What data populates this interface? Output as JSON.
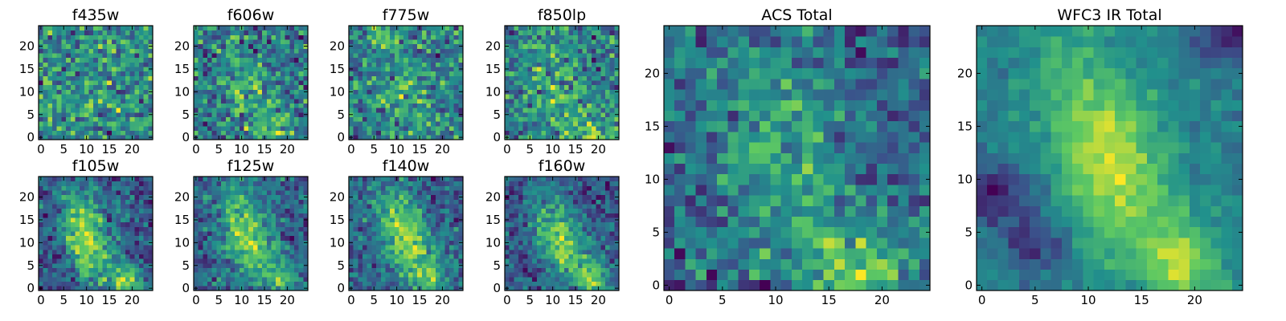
{
  "colormap": [
    "#440154",
    "#3b528b",
    "#21918c",
    "#5ec962",
    "#fde725"
  ],
  "chart_data": [
    {
      "type": "heatmap",
      "title": "f435w",
      "xticks": [
        "0",
        "5",
        "10",
        "15",
        "20"
      ],
      "yticks": [
        "0",
        "5",
        "10",
        "15",
        "20"
      ],
      "grid_size": 25,
      "xlim": [
        -0.5,
        24.5
      ],
      "ylim": [
        -0.5,
        24.5
      ],
      "pattern": {
        "seed": 11,
        "noise": 0.55,
        "blob": 0.05,
        "cx": 12,
        "cy": 12,
        "sx": 6,
        "sy": 6,
        "angle": 0,
        "extras": []
      }
    },
    {
      "type": "heatmap",
      "title": "f606w",
      "xticks": [
        "0",
        "5",
        "10",
        "15",
        "20"
      ],
      "yticks": [
        "0",
        "5",
        "10",
        "15",
        "20"
      ],
      "grid_size": 25,
      "xlim": [
        -0.5,
        24.5
      ],
      "ylim": [
        -0.5,
        24.5
      ],
      "pattern": {
        "seed": 23,
        "noise": 0.45,
        "blob": 0.22,
        "cx": 11,
        "cy": 11,
        "sx": 3.5,
        "sy": 7,
        "angle": -0.35,
        "extras": [
          [
            18,
            2,
            3,
            0.3
          ]
        ]
      }
    },
    {
      "type": "heatmap",
      "title": "f775w",
      "xticks": [
        "0",
        "5",
        "10",
        "15",
        "20"
      ],
      "yticks": [
        "0",
        "5",
        "10",
        "15",
        "20"
      ],
      "grid_size": 25,
      "xlim": [
        -0.5,
        24.5
      ],
      "ylim": [
        -0.5,
        24.5
      ],
      "pattern": {
        "seed": 37,
        "noise": 0.5,
        "blob": 0.18,
        "cx": 12,
        "cy": 10,
        "sx": 3.5,
        "sy": 7,
        "angle": -0.3,
        "extras": [
          [
            6,
            22,
            2,
            0.3
          ]
        ]
      }
    },
    {
      "type": "heatmap",
      "title": "f850lp",
      "xticks": [
        "0",
        "5",
        "10",
        "15",
        "20"
      ],
      "yticks": [
        "0",
        "5",
        "10",
        "15",
        "20"
      ],
      "grid_size": 25,
      "xlim": [
        -0.5,
        24.5
      ],
      "ylim": [
        -0.5,
        24.5
      ],
      "pattern": {
        "seed": 41,
        "noise": 0.48,
        "blob": 0.2,
        "cx": 11,
        "cy": 9,
        "sx": 3.5,
        "sy": 7,
        "angle": -0.3,
        "extras": [
          [
            19,
            1,
            3,
            0.35
          ]
        ]
      }
    },
    {
      "type": "heatmap",
      "title": "f105w",
      "xticks": [
        "0",
        "5",
        "10",
        "15",
        "20"
      ],
      "yticks": [
        "0",
        "5",
        "10",
        "15",
        "20"
      ],
      "grid_size": 25,
      "xlim": [
        -0.5,
        24.5
      ],
      "ylim": [
        -0.5,
        24.5
      ],
      "pattern": {
        "seed": 53,
        "noise": 0.28,
        "blob": 0.5,
        "cx": 10,
        "cy": 11,
        "sx": 3.5,
        "sy": 7.5,
        "angle": -0.3,
        "extras": [
          [
            19,
            1,
            2.5,
            0.4
          ]
        ]
      }
    },
    {
      "type": "heatmap",
      "title": "f125w",
      "xticks": [
        "0",
        "5",
        "10",
        "15",
        "20"
      ],
      "yticks": [
        "0",
        "5",
        "10",
        "15",
        "20"
      ],
      "grid_size": 25,
      "xlim": [
        -0.5,
        24.5
      ],
      "ylim": [
        -0.5,
        24.5
      ],
      "pattern": {
        "seed": 67,
        "noise": 0.3,
        "blob": 0.5,
        "cx": 11,
        "cy": 12,
        "sx": 3.5,
        "sy": 7.5,
        "angle": -0.3,
        "extras": [
          [
            19,
            2,
            2.5,
            0.35
          ]
        ]
      }
    },
    {
      "type": "heatmap",
      "title": "f140w",
      "xticks": [
        "0",
        "5",
        "10",
        "15",
        "20"
      ],
      "yticks": [
        "0",
        "5",
        "10",
        "15",
        "20"
      ],
      "grid_size": 25,
      "xlim": [
        -0.5,
        24.5
      ],
      "ylim": [
        -0.5,
        24.5
      ],
      "pattern": {
        "seed": 79,
        "noise": 0.3,
        "blob": 0.5,
        "cx": 12,
        "cy": 11,
        "sx": 3.5,
        "sy": 7.5,
        "angle": -0.35,
        "extras": [
          [
            18,
            2,
            2.5,
            0.3
          ]
        ]
      }
    },
    {
      "type": "heatmap",
      "title": "f160w",
      "xticks": [
        "0",
        "5",
        "10",
        "15",
        "20"
      ],
      "yticks": [
        "0",
        "5",
        "10",
        "15",
        "20"
      ],
      "grid_size": 25,
      "xlim": [
        -0.5,
        24.5
      ],
      "ylim": [
        -0.5,
        24.5
      ],
      "pattern": {
        "seed": 83,
        "noise": 0.3,
        "blob": 0.5,
        "cx": 12,
        "cy": 10,
        "sx": 3.5,
        "sy": 7.5,
        "angle": -0.4,
        "extras": [
          [
            19,
            2,
            2.5,
            0.4
          ]
        ]
      }
    },
    {
      "type": "heatmap",
      "title": "ACS Total",
      "xticks": [
        "0",
        "5",
        "10",
        "15",
        "20"
      ],
      "yticks": [
        "0",
        "5",
        "10",
        "15",
        "20"
      ],
      "grid_size": 25,
      "xlim": [
        -0.5,
        24.5
      ],
      "ylim": [
        -0.5,
        24.5
      ],
      "pattern": {
        "seed": 97,
        "noise": 0.42,
        "blob": 0.3,
        "cx": 11,
        "cy": 11,
        "sx": 3.5,
        "sy": 7.5,
        "angle": -0.3,
        "extras": [
          [
            18,
            1,
            3,
            0.45
          ]
        ]
      }
    },
    {
      "type": "heatmap",
      "title": "WFC3 IR Total",
      "xticks": [
        "0",
        "5",
        "10",
        "15",
        "20"
      ],
      "yticks": [
        "0",
        "5",
        "10",
        "15",
        "20"
      ],
      "grid_size": 25,
      "xlim": [
        -0.5,
        24.5
      ],
      "ylim": [
        -0.5,
        24.5
      ],
      "pattern": {
        "seed": 101,
        "noise": 0.18,
        "blob": 0.6,
        "cx": 12,
        "cy": 12,
        "sx": 3.5,
        "sy": 7.5,
        "angle": -0.35,
        "extras": [
          [
            19,
            2,
            2.5,
            0.45
          ],
          [
            1,
            9,
            2.2,
            -0.45
          ],
          [
            5,
            4,
            2,
            -0.35
          ],
          [
            23,
            24,
            2,
            -0.4
          ]
        ]
      }
    }
  ]
}
